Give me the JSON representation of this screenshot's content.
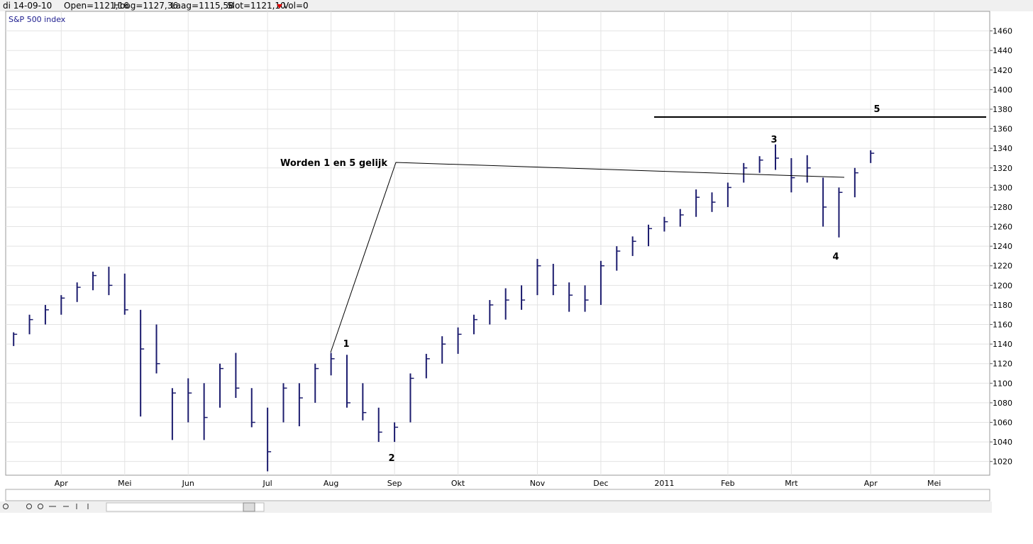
{
  "header": {
    "date": "di 14-09-10",
    "open": "Open=1121,16",
    "high": "Hoog=1127,36",
    "low": "Laag=1115,58",
    "close": "Slot=1121,10",
    "volume": "Vol=0"
  },
  "chart_data": {
    "type": "hlc",
    "legend": "S&P 500 index",
    "color": "#1c1c6e",
    "grid": true,
    "categories": [
      null,
      null,
      null,
      "Apr",
      null,
      null,
      null,
      "Mei",
      null,
      null,
      null,
      "Jun",
      null,
      null,
      null,
      null,
      "Jul",
      null,
      null,
      null,
      "Aug",
      null,
      null,
      null,
      "Sep",
      null,
      null,
      null,
      "Okt",
      null,
      null,
      null,
      null,
      "Nov",
      null,
      null,
      null,
      "Dec",
      null,
      null,
      null,
      "2011",
      null,
      null,
      null,
      "Feb",
      null,
      null,
      null,
      "Mrt",
      null,
      null,
      null,
      null,
      "Apr",
      null,
      null,
      null,
      "Mei",
      null,
      null,
      null
    ],
    "high": [
      1152,
      1170,
      1180,
      1190,
      1203,
      1214,
      1219,
      1212,
      1175,
      1160,
      1095,
      1105,
      1100,
      1120,
      1131,
      1095,
      1075,
      1100,
      1100,
      1120,
      1131,
      1129,
      1100,
      1075,
      1060,
      1110,
      1130,
      1148,
      1157,
      1170,
      1185,
      1197,
      1200,
      1227,
      1222,
      1203,
      1200,
      1225,
      1240,
      1250,
      1262,
      1270,
      1278,
      1298,
      1295,
      1305,
      1325,
      1332,
      1344,
      1330,
      1333,
      1310,
      1300,
      1320,
      1338,
      null,
      null,
      null,
      null,
      null,
      null,
      null
    ],
    "low": [
      1138,
      1150,
      1160,
      1170,
      1183,
      1195,
      1190,
      1170,
      1066,
      1110,
      1042,
      1060,
      1042,
      1075,
      1085,
      1055,
      1010,
      1060,
      1056,
      1080,
      1108,
      1075,
      1062,
      1040,
      1040,
      1060,
      1105,
      1120,
      1130,
      1150,
      1160,
      1165,
      1175,
      1190,
      1190,
      1173,
      1173,
      1180,
      1215,
      1230,
      1240,
      1255,
      1260,
      1270,
      1275,
      1280,
      1305,
      1315,
      1318,
      1295,
      1305,
      1260,
      1249,
      1290,
      1325,
      null,
      null,
      null,
      null,
      null,
      null,
      null
    ],
    "close": [
      1150,
      1165,
      1175,
      1187,
      1198,
      1210,
      1200,
      1175,
      1135,
      1120,
      1090,
      1090,
      1065,
      1115,
      1095,
      1060,
      1030,
      1095,
      1085,
      1115,
      1125,
      1080,
      1070,
      1050,
      1055,
      1105,
      1125,
      1140,
      1150,
      1165,
      1180,
      1185,
      1185,
      1220,
      1200,
      1190,
      1185,
      1220,
      1235,
      1245,
      1258,
      1265,
      1272,
      1290,
      1285,
      1300,
      1320,
      1328,
      1330,
      1310,
      1320,
      1280,
      1295,
      1315,
      1335,
      null,
      null,
      null,
      null,
      null,
      null,
      null
    ],
    "ylim": [
      1006,
      1480
    ],
    "yticks": [
      1020,
      1040,
      1060,
      1080,
      1100,
      1120,
      1140,
      1160,
      1180,
      1200,
      1220,
      1240,
      1260,
      1280,
      1300,
      1320,
      1340,
      1360,
      1380,
      1400,
      1420,
      1440,
      1460
    ],
    "annotations": [
      "Worden 1 en 5 gelijk",
      "1",
      "2",
      "3",
      "4",
      "5"
    ]
  }
}
